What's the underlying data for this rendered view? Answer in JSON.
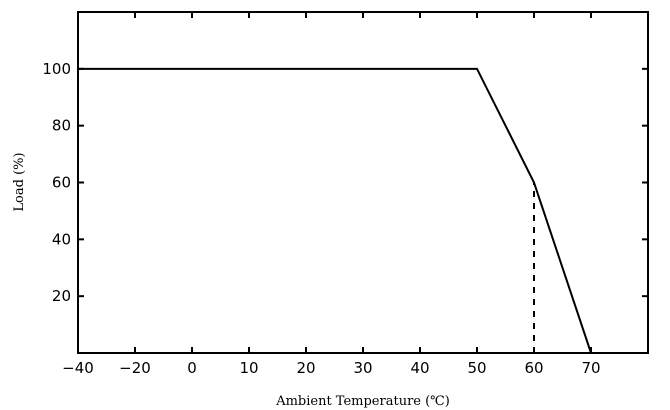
{
  "chart_data": {
    "type": "line",
    "title": "",
    "xlabel": "Ambient Temperature (℃)",
    "ylabel": "Load (%)",
    "xlim": [
      -40,
      80
    ],
    "ylim": [
      0,
      120
    ],
    "xticks": [
      -40,
      -20,
      0,
      10,
      20,
      30,
      40,
      50,
      60,
      70
    ],
    "xtick_labels": [
      "−40",
      "−20",
      "0",
      "10",
      "20",
      "30",
      "40",
      "50",
      "60",
      "70"
    ],
    "yticks": [
      20,
      40,
      60,
      80,
      100
    ],
    "ytick_labels": [
      "20",
      "40",
      "60",
      "80",
      "100"
    ],
    "grid": false,
    "legend": "none",
    "series": [
      {
        "x": [
          -40,
          50,
          60,
          70
        ],
        "y": [
          100,
          100,
          60,
          0
        ]
      }
    ],
    "reference_lines": [
      {
        "style": "dashed",
        "x": [
          60,
          60
        ],
        "y": [
          0,
          60
        ]
      }
    ]
  }
}
